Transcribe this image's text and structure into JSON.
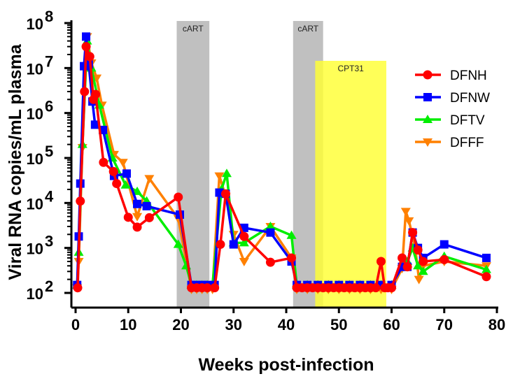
{
  "chart_data": {
    "type": "line",
    "xlabel": "Weeks post-infection",
    "ylabel": "Viral RNA copies/mL plasma",
    "xlim": [
      0,
      80
    ],
    "ylim": [
      100,
      100000000
    ],
    "yscale": "log",
    "xticks": [
      "0",
      "10",
      "20",
      "30",
      "40",
      "50",
      "60",
      "70",
      "80"
    ],
    "yticks": [
      {
        "base": "10",
        "exp": "2"
      },
      {
        "base": "10",
        "exp": "3"
      },
      {
        "base": "10",
        "exp": "4"
      },
      {
        "base": "10",
        "exp": "5"
      },
      {
        "base": "10",
        "exp": "6"
      },
      {
        "base": "10",
        "exp": "7"
      },
      {
        "base": "10",
        "exp": "8"
      }
    ],
    "legend_position": "top-right",
    "regions": [
      {
        "label": "cART",
        "x": [
          19.2,
          25.4
        ],
        "color": "#c0c0c0"
      },
      {
        "label": "cART",
        "x": [
          41.3,
          47.0
        ],
        "color": "#c0c0c0"
      },
      {
        "label": "CPT31",
        "x": [
          45.5,
          59.0
        ],
        "color": "#ffff33"
      }
    ],
    "series": [
      {
        "name": "DFNH",
        "color": "#ff0000",
        "marker": "circle",
        "points": [
          [
            0.4,
            130
          ],
          [
            0.9,
            11000
          ],
          [
            1.7,
            3000000
          ],
          [
            2,
            30000000
          ],
          [
            2.7,
            18000000
          ],
          [
            3.4,
            2000000
          ],
          [
            3.8,
            2600000
          ],
          [
            5.3,
            80000
          ],
          [
            7.2,
            50000
          ],
          [
            7.8,
            27000
          ],
          [
            10,
            4800
          ],
          [
            11.7,
            2900
          ],
          [
            14,
            4700
          ],
          [
            19.5,
            13500
          ],
          [
            22,
            130
          ],
          [
            23,
            130
          ],
          [
            24,
            130
          ],
          [
            25,
            130
          ],
          [
            26.4,
            130
          ],
          [
            27.5,
            1200
          ],
          [
            28.5,
            16000
          ],
          [
            32,
            1800
          ],
          [
            37,
            480
          ],
          [
            41,
            600
          ],
          [
            42,
            130
          ],
          [
            43,
            130
          ],
          [
            44,
            130
          ],
          [
            45,
            130
          ],
          [
            46,
            130
          ],
          [
            47,
            130
          ],
          [
            48,
            130
          ],
          [
            49,
            130
          ],
          [
            50,
            130
          ],
          [
            51,
            130
          ],
          [
            52,
            130
          ],
          [
            53,
            130
          ],
          [
            54,
            130
          ],
          [
            55,
            130
          ],
          [
            56,
            130
          ],
          [
            57,
            130
          ],
          [
            58,
            500
          ],
          [
            58.7,
            130
          ],
          [
            59.3,
            130
          ],
          [
            60,
            130
          ],
          [
            62,
            600
          ],
          [
            63,
            380
          ],
          [
            64,
            2200
          ],
          [
            65,
            900
          ],
          [
            66,
            500
          ],
          [
            70,
            550
          ],
          [
            78,
            230
          ]
        ]
      },
      {
        "name": "DFNW",
        "color": "#0000ff",
        "marker": "square",
        "points": [
          [
            0.3,
            150
          ],
          [
            0.6,
            1800
          ],
          [
            0.9,
            27000
          ],
          [
            1.6,
            11000000
          ],
          [
            2,
            50000000
          ],
          [
            2.5,
            12000000
          ],
          [
            3.2,
            1800000
          ],
          [
            3.7,
            550000
          ],
          [
            5.2,
            420000
          ],
          [
            7.3,
            40000
          ],
          [
            9.7,
            45000
          ],
          [
            11.7,
            9500
          ],
          [
            13.5,
            8500
          ],
          [
            19.8,
            5500
          ],
          [
            22,
            150
          ],
          [
            23,
            150
          ],
          [
            24,
            150
          ],
          [
            25,
            150
          ],
          [
            26.4,
            150
          ],
          [
            27.3,
            17000
          ],
          [
            28.5,
            16000
          ],
          [
            30,
            1200
          ],
          [
            32,
            2800
          ],
          [
            37,
            2200
          ],
          [
            41,
            500
          ],
          [
            42,
            150
          ],
          [
            44,
            150
          ],
          [
            46,
            150
          ],
          [
            48,
            150
          ],
          [
            50,
            150
          ],
          [
            52,
            150
          ],
          [
            54,
            150
          ],
          [
            56,
            150
          ],
          [
            58,
            150
          ],
          [
            60,
            150
          ],
          [
            62,
            380
          ],
          [
            63,
            380
          ],
          [
            64,
            2200
          ],
          [
            65,
            1000
          ],
          [
            66,
            600
          ],
          [
            70,
            1200
          ],
          [
            78,
            600
          ]
        ]
      },
      {
        "name": "DFTV",
        "color": "#00ee00",
        "marker": "triangle-up",
        "points": [
          [
            0.3,
            150
          ],
          [
            0.6,
            800
          ],
          [
            1.3,
            200000
          ],
          [
            2.2,
            40000000
          ],
          [
            3,
            10000000
          ],
          [
            4.5,
            1500000
          ],
          [
            7,
            100000
          ],
          [
            9.5,
            25000
          ],
          [
            11.7,
            18000
          ],
          [
            13.5,
            11000
          ],
          [
            19.5,
            1200
          ],
          [
            21,
            400
          ],
          [
            22,
            150
          ],
          [
            23,
            150
          ],
          [
            24,
            150
          ],
          [
            25,
            150
          ],
          [
            26,
            150
          ],
          [
            27.7,
            20000
          ],
          [
            28.7,
            45000
          ],
          [
            30,
            1300
          ],
          [
            32,
            1300
          ],
          [
            37,
            3000
          ],
          [
            41,
            1900
          ],
          [
            42,
            150
          ],
          [
            44,
            150
          ],
          [
            46,
            150
          ],
          [
            48,
            150
          ],
          [
            50,
            150
          ],
          [
            52,
            150
          ],
          [
            54,
            150
          ],
          [
            56,
            150
          ],
          [
            58,
            150
          ],
          [
            60,
            150
          ],
          [
            62,
            400
          ],
          [
            63,
            500
          ],
          [
            64,
            1000
          ],
          [
            65,
            400
          ],
          [
            66,
            300
          ],
          [
            70,
            650
          ],
          [
            78,
            330
          ]
        ]
      },
      {
        "name": "DFFF",
        "color": "#ff8000",
        "marker": "triangle-down",
        "points": [
          [
            0.3,
            130
          ],
          [
            0.6,
            500
          ],
          [
            1.3,
            170000
          ],
          [
            2.2,
            50000000
          ],
          [
            3,
            13000000
          ],
          [
            4,
            6000000
          ],
          [
            5,
            1500000
          ],
          [
            7.3,
            120000
          ],
          [
            9,
            80000
          ],
          [
            11.7,
            5000
          ],
          [
            14,
            35000
          ],
          [
            19.5,
            4500
          ],
          [
            22,
            120
          ],
          [
            23,
            120
          ],
          [
            24,
            120
          ],
          [
            25,
            120
          ],
          [
            26,
            120
          ],
          [
            27.3,
            40000
          ],
          [
            28.5,
            14000
          ],
          [
            30,
            2000
          ],
          [
            32,
            500
          ],
          [
            37,
            3000
          ],
          [
            41,
            600
          ],
          [
            42,
            120
          ],
          [
            44,
            120
          ],
          [
            46,
            120
          ],
          [
            48,
            120
          ],
          [
            50,
            120
          ],
          [
            52,
            120
          ],
          [
            54,
            120
          ],
          [
            56,
            120
          ],
          [
            58,
            120
          ],
          [
            60,
            120
          ],
          [
            62,
            350
          ],
          [
            62.7,
            6500
          ],
          [
            63.3,
            4000
          ],
          [
            64.5,
            1000
          ],
          [
            65.2,
            200
          ],
          [
            66,
            400
          ],
          [
            70,
            500
          ],
          [
            78,
            400
          ]
        ]
      }
    ]
  }
}
